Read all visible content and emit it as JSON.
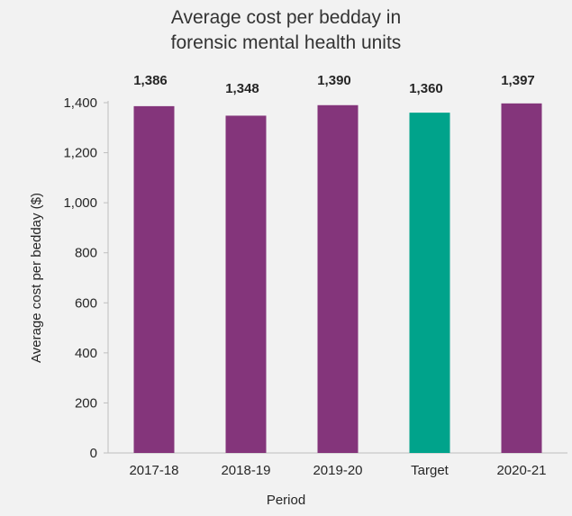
{
  "chart_data": {
    "type": "bar",
    "title_lines": [
      "Average cost per bedday in",
      "forensic mental health units"
    ],
    "xlabel": "Period",
    "ylabel": "Average cost per bedday ($)",
    "categories": [
      "2017-18",
      "2018-19",
      "2019-20",
      "Target",
      "2020-21"
    ],
    "values": [
      1386,
      1348,
      1390,
      1360,
      1397
    ],
    "value_labels": [
      "1,386",
      "1,348",
      "1,390",
      "1,360",
      "1,397"
    ],
    "bar_colors": [
      "#84357b",
      "#84357b",
      "#84357b",
      "#00a38b",
      "#84357b"
    ],
    "ylim": [
      0,
      1400
    ],
    "yticks": [
      0,
      200,
      400,
      600,
      800,
      1000,
      1200,
      1400
    ],
    "ytick_labels": [
      "0",
      "200",
      "400",
      "600",
      "800",
      "1,000",
      "1,200",
      "1,400"
    ],
    "grid": false,
    "legend": "none"
  }
}
